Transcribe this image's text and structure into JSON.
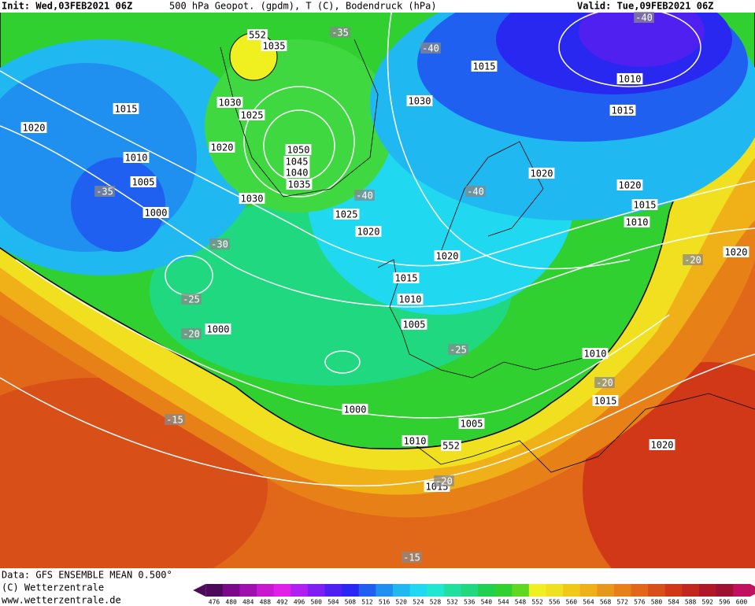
{
  "header": {
    "init": "Init: Wed,03FEB2021 06Z",
    "title": "500 hPa Geopot. (gpdm), T (C), Bodendruck (hPa)",
    "valid": "Valid: Tue,09FEB2021 06Z"
  },
  "footer": {
    "source": "Data: GFS ENSEMBLE MEAN 0.500°",
    "copyright": "(C) Wetterzentrale",
    "url": "www.wetterzentrale.de"
  },
  "height_labels": [
    "552",
    "552"
  ],
  "isobar_labels": [
    "1035",
    "1015",
    "1010",
    "1015",
    "1030",
    "1025",
    "1030",
    "1015",
    "1020",
    "1020",
    "1050",
    "1045",
    "1040",
    "1035",
    "1010",
    "1020",
    "1005",
    "1020",
    "1030",
    "1025",
    "1000",
    "1015",
    "1020",
    "1010",
    "1020",
    "1020",
    "1015",
    "1010",
    "1005",
    "1000",
    "1010",
    "1015",
    "1000",
    "1005",
    "1010",
    "1020",
    "1015"
  ],
  "temperature_labels": [
    "-35",
    "-40",
    "-40",
    "-35",
    "-40",
    "-40",
    "-30",
    "-20",
    "-25",
    "-20",
    "-25",
    "-20",
    "-15",
    "-20",
    "-15"
  ],
  "legend": {
    "values": [
      476,
      480,
      484,
      488,
      492,
      496,
      500,
      504,
      508,
      512,
      516,
      520,
      524,
      528,
      532,
      536,
      540,
      544,
      548,
      552,
      556,
      560,
      564,
      568,
      572,
      576,
      580,
      584,
      588,
      592,
      596,
      600
    ],
    "colors": [
      "#4b0a5a",
      "#7a0a8a",
      "#a010b0",
      "#c818d0",
      "#e020e8",
      "#b020f0",
      "#8020f0",
      "#5020f0",
      "#2828f0",
      "#2060f0",
      "#2090f0",
      "#20b8f0",
      "#20d8f0",
      "#20e8d0",
      "#20e0a0",
      "#20d880",
      "#20d050",
      "#30d030",
      "#60d820",
      "#f0f020",
      "#f0e020",
      "#f0c818",
      "#f0b018",
      "#e89818",
      "#e88018",
      "#e06818",
      "#d85018",
      "#d03818",
      "#c02820",
      "#b01828",
      "#a01030",
      "#c01060"
    ]
  }
}
